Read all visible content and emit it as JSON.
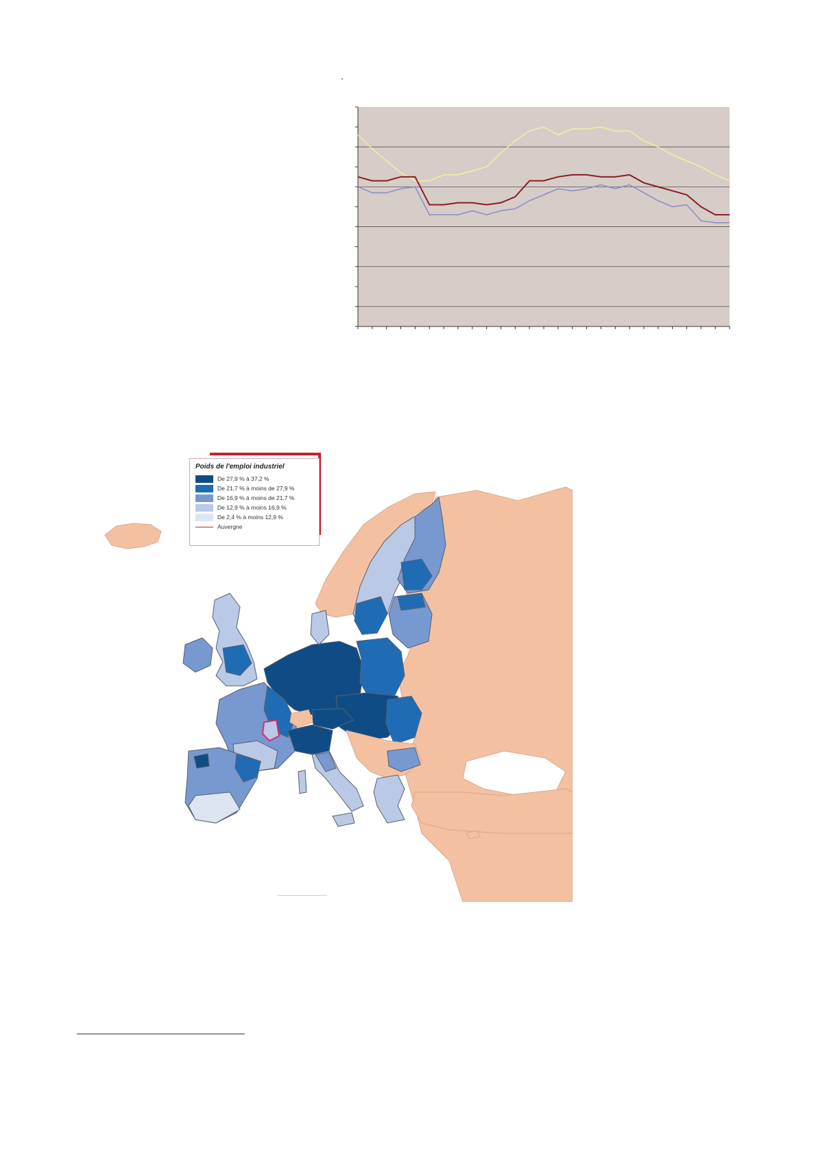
{
  "chart_data": {
    "type": "line",
    "title": "",
    "xlabel": "",
    "ylabel": "",
    "grid": true,
    "background": "#d6ccc8",
    "x": [
      1,
      2,
      3,
      4,
      5,
      6,
      7,
      8,
      9,
      10,
      11,
      12,
      13,
      14,
      15,
      16,
      17,
      18,
      19,
      20,
      21,
      22,
      23,
      24,
      25,
      26,
      27
    ],
    "ylim": [
      0,
      11
    ],
    "series": [
      {
        "color": "#f4ee9e",
        "values": [
          9.6,
          8.9,
          8.3,
          7.7,
          7.3,
          7.3,
          7.6,
          7.6,
          7.8,
          8.0,
          8.7,
          9.3,
          9.8,
          10.0,
          9.6,
          9.9,
          9.9,
          10.0,
          9.8,
          9.8,
          9.3,
          9.0,
          8.6,
          8.3,
          8.0,
          7.6,
          7.3
        ]
      },
      {
        "color": "#8c1c24",
        "values": [
          7.5,
          7.3,
          7.3,
          7.5,
          7.5,
          6.1,
          6.1,
          6.2,
          6.2,
          6.1,
          6.2,
          6.5,
          7.3,
          7.3,
          7.5,
          7.6,
          7.6,
          7.5,
          7.5,
          7.6,
          7.2,
          7.0,
          6.8,
          6.6,
          6.0,
          5.6,
          5.6
        ]
      },
      {
        "color": "#8a8ccc",
        "values": [
          7.0,
          6.7,
          6.7,
          6.9,
          7.0,
          5.6,
          5.6,
          5.6,
          5.8,
          5.6,
          5.8,
          5.9,
          6.3,
          6.6,
          6.9,
          6.8,
          6.9,
          7.1,
          6.9,
          7.1,
          6.7,
          6.3,
          6.0,
          6.1,
          5.3,
          5.2,
          5.2
        ]
      }
    ]
  },
  "map": {
    "legend": {
      "title": "Poids de l'emploi industriel",
      "items": [
        {
          "label": "De 27,9 % à 37,2 %",
          "color": "#0f4c85"
        },
        {
          "label": "De 21,7 % à moins de 27,9 %",
          "color": "#1f6cb5"
        },
        {
          "label": "De 16,9 % à moins de 21,7 %",
          "color": "#7898d0"
        },
        {
          "label": "De 12,9 % à moins 16,9 %",
          "color": "#b9c9e6"
        },
        {
          "label": "De 2,4 % à moins 12,9 %",
          "color": "#dde5f2"
        }
      ],
      "line_item": {
        "label": "Auvergne",
        "color": "#b2283a"
      }
    },
    "non_eu_color": "#f3c1a2",
    "sea_color": "#ffffff"
  }
}
